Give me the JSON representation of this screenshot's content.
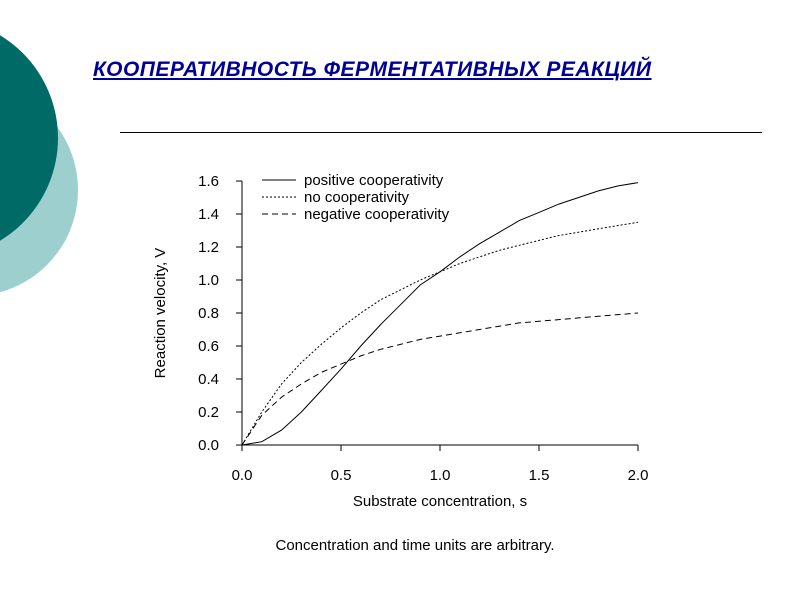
{
  "slide": {
    "title": "КООПЕРАТИВНОСТЬ ФЕРМЕНТАТИВНЫХ РЕАКЦИЙ",
    "caption": "Concentration and time units are arbitrary.",
    "colors": {
      "title": "#000099",
      "circle_dark": "#006B66",
      "circle_light": "#9ECFCF"
    }
  },
  "chart_data": {
    "type": "line",
    "title": "",
    "xlabel": "Substrate concentration, s",
    "ylabel": "Reaction velocity, V",
    "xlim": [
      0,
      2.0
    ],
    "ylim": [
      0,
      1.6
    ],
    "xticks": [
      "0.0",
      "0.5",
      "1.0",
      "1.5",
      "2.0"
    ],
    "yticks": [
      "0.0",
      "0.2",
      "0.4",
      "0.6",
      "0.8",
      "1.0",
      "1.2",
      "1.4",
      "1.6"
    ],
    "grid": false,
    "legend_position": "top-left",
    "x": [
      0,
      0.1,
      0.2,
      0.3,
      0.4,
      0.5,
      0.6,
      0.7,
      0.8,
      0.9,
      1.0,
      1.1,
      1.2,
      1.3,
      1.4,
      1.5,
      1.6,
      1.7,
      1.8,
      1.9,
      2.0
    ],
    "series": [
      {
        "name": "positive cooperativity",
        "dash": "solid",
        "values": [
          0.0,
          0.02,
          0.09,
          0.2,
          0.33,
          0.46,
          0.6,
          0.73,
          0.85,
          0.97,
          1.05,
          1.14,
          1.22,
          1.29,
          1.36,
          1.41,
          1.46,
          1.5,
          1.54,
          1.57,
          1.59
        ]
      },
      {
        "name": "no cooperativity",
        "dash": "dotted",
        "values": [
          0.0,
          0.2,
          0.37,
          0.5,
          0.61,
          0.71,
          0.8,
          0.88,
          0.94,
          1.0,
          1.05,
          1.1,
          1.14,
          1.18,
          1.21,
          1.24,
          1.27,
          1.29,
          1.31,
          1.33,
          1.35
        ]
      },
      {
        "name": "negative cooperativity",
        "dash": "dashed",
        "values": [
          0.0,
          0.18,
          0.29,
          0.37,
          0.44,
          0.49,
          0.54,
          0.58,
          0.61,
          0.64,
          0.66,
          0.68,
          0.7,
          0.72,
          0.74,
          0.75,
          0.76,
          0.77,
          0.78,
          0.79,
          0.8
        ]
      }
    ]
  }
}
